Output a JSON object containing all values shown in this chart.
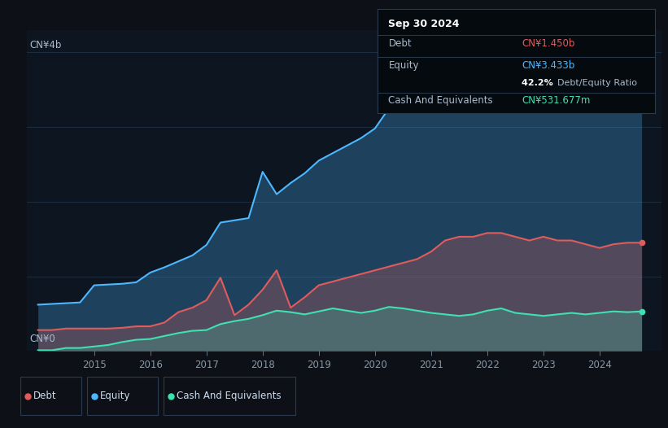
{
  "bg_color": "#0d1117",
  "plot_bg_color": "#0d1520",
  "grid_color": "#1e2d3d",
  "ylabel_top": "CN¥4b",
  "ylabel_bottom": "CN¥0",
  "debt_color": "#e05c5c",
  "equity_color": "#4db8ff",
  "cash_color": "#40e0b0",
  "legend_items": [
    "Debt",
    "Equity",
    "Cash And Equivalents"
  ],
  "tooltip": {
    "date": "Sep 30 2024",
    "debt_label": "Debt",
    "debt_value": "CN¥1.450b",
    "equity_label": "Equity",
    "equity_value": "CN¥3.433b",
    "ratio_value": "42.2%",
    "ratio_label": "Debt/Equity Ratio",
    "cash_label": "Cash And Equivalents",
    "cash_value": "CN¥531.677m"
  },
  "years": [
    2014.0,
    2014.25,
    2014.5,
    2014.75,
    2015.0,
    2015.25,
    2015.5,
    2015.75,
    2016.0,
    2016.25,
    2016.5,
    2016.75,
    2017.0,
    2017.25,
    2017.5,
    2017.75,
    2018.0,
    2018.25,
    2018.5,
    2018.75,
    2019.0,
    2019.25,
    2019.5,
    2019.75,
    2020.0,
    2020.25,
    2020.5,
    2020.75,
    2021.0,
    2021.25,
    2021.5,
    2021.75,
    2022.0,
    2022.25,
    2022.5,
    2022.75,
    2023.0,
    2023.25,
    2023.5,
    2023.75,
    2024.0,
    2024.25,
    2024.5,
    2024.75
  ],
  "equity": [
    0.62,
    0.63,
    0.64,
    0.65,
    0.88,
    0.89,
    0.9,
    0.92,
    1.05,
    1.12,
    1.2,
    1.28,
    1.42,
    1.72,
    1.75,
    1.78,
    2.4,
    2.1,
    2.25,
    2.38,
    2.55,
    2.65,
    2.75,
    2.85,
    2.98,
    3.25,
    3.45,
    3.55,
    3.6,
    3.68,
    3.78,
    3.88,
    3.98,
    4.08,
    3.93,
    3.82,
    3.78,
    3.72,
    3.68,
    3.62,
    3.52,
    3.48,
    3.43,
    3.43
  ],
  "debt": [
    0.28,
    0.28,
    0.3,
    0.3,
    0.3,
    0.3,
    0.31,
    0.33,
    0.33,
    0.38,
    0.52,
    0.58,
    0.68,
    0.98,
    0.48,
    0.62,
    0.82,
    1.08,
    0.58,
    0.72,
    0.88,
    0.93,
    0.98,
    1.03,
    1.08,
    1.13,
    1.18,
    1.23,
    1.33,
    1.48,
    1.53,
    1.53,
    1.58,
    1.58,
    1.53,
    1.48,
    1.53,
    1.48,
    1.48,
    1.43,
    1.38,
    1.43,
    1.45,
    1.45
  ],
  "cash": [
    0.01,
    0.01,
    0.04,
    0.04,
    0.06,
    0.08,
    0.12,
    0.15,
    0.16,
    0.2,
    0.24,
    0.27,
    0.28,
    0.36,
    0.4,
    0.43,
    0.48,
    0.54,
    0.52,
    0.49,
    0.53,
    0.57,
    0.54,
    0.51,
    0.54,
    0.59,
    0.57,
    0.54,
    0.51,
    0.49,
    0.47,
    0.49,
    0.54,
    0.57,
    0.51,
    0.49,
    0.47,
    0.49,
    0.51,
    0.49,
    0.51,
    0.53,
    0.52,
    0.53
  ],
  "xlim": [
    2013.8,
    2025.1
  ],
  "ylim": [
    0,
    4.3
  ],
  "xtick_years": [
    2015,
    2016,
    2017,
    2018,
    2019,
    2020,
    2021,
    2022,
    2023,
    2024
  ]
}
